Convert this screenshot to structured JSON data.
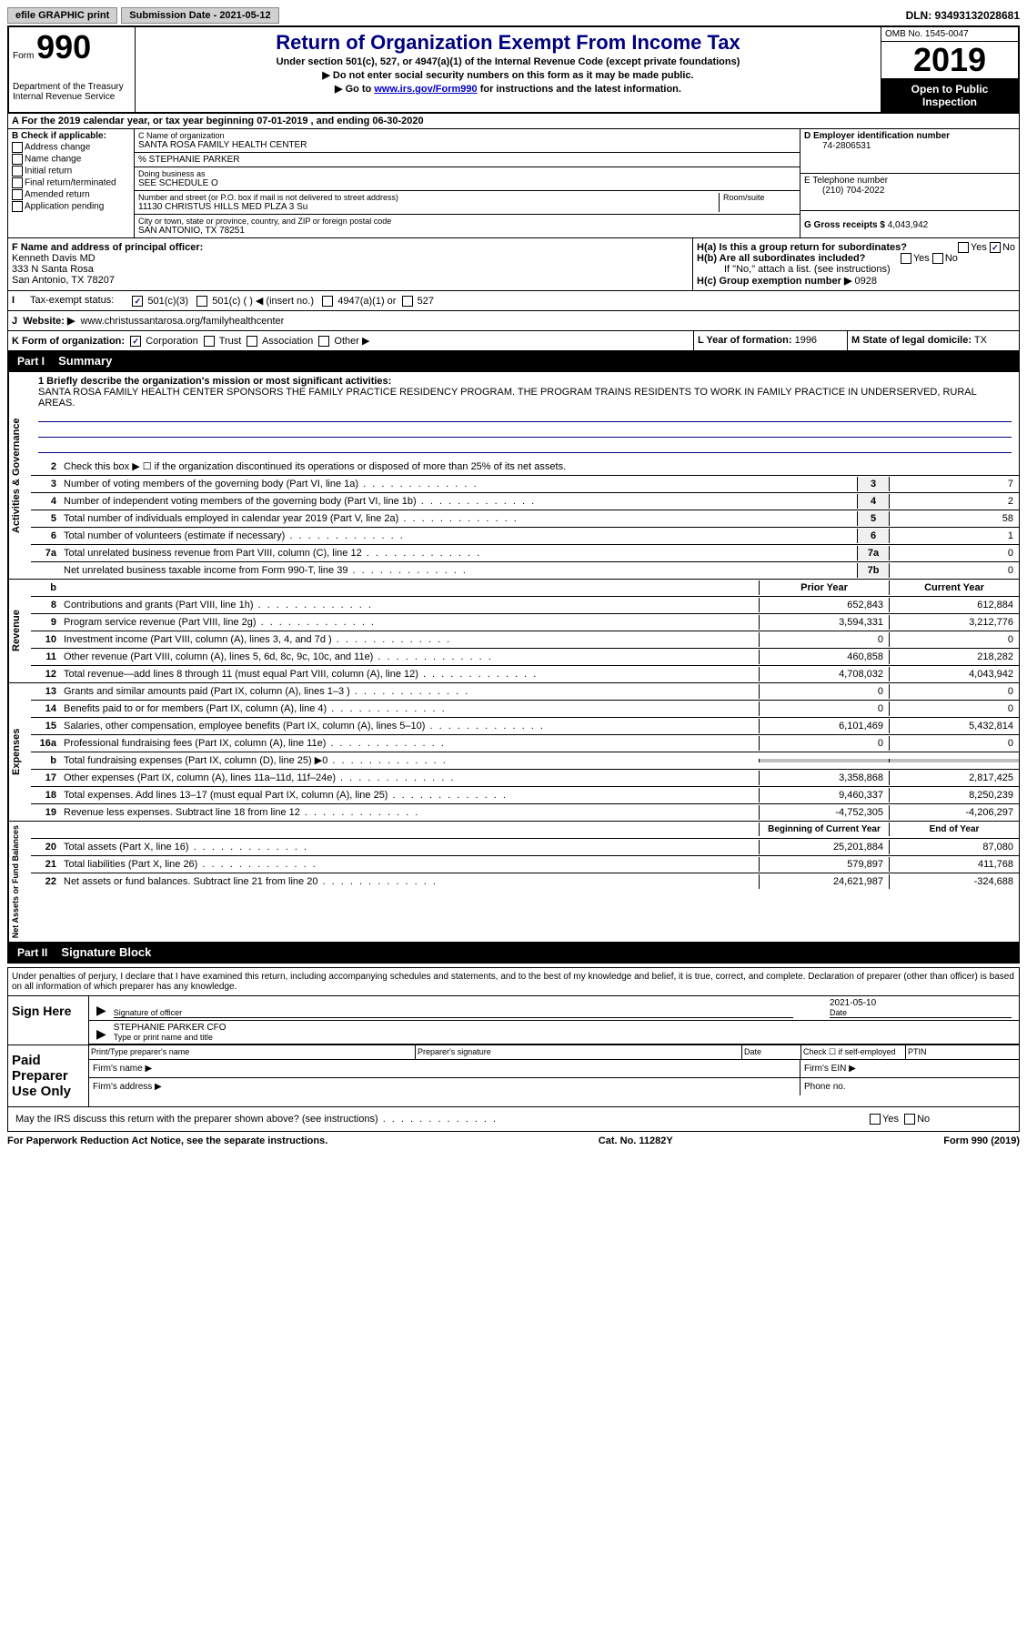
{
  "top_bar": {
    "efile": "efile GRAPHIC print",
    "submission": "Submission Date - 2021-05-12",
    "dln": "DLN: 93493132028681"
  },
  "header": {
    "form_label": "Form",
    "form_number": "990",
    "dept": "Department of the Treasury\nInternal Revenue Service",
    "title": "Return of Organization Exempt From Income Tax",
    "subtitle1": "Under section 501(c), 527, or 4947(a)(1) of the Internal Revenue Code (except private foundations)",
    "subtitle2": "▶ Do not enter social security numbers on this form as it may be made public.",
    "subtitle3_pre": "▶ Go to ",
    "subtitle3_link": "www.irs.gov/Form990",
    "subtitle3_post": " for instructions and the latest information.",
    "omb": "OMB No. 1545-0047",
    "year": "2019",
    "open": "Open to Public Inspection"
  },
  "section_a": {
    "tax_year": "A For the 2019 calendar year, or tax year beginning 07-01-2019    , and ending 06-30-2020",
    "b_label": "B Check if applicable:",
    "b_items": [
      "Address change",
      "Name change",
      "Initial return",
      "Final return/terminated",
      "Amended return",
      "Application pending"
    ],
    "c_name_label": "C Name of organization",
    "c_name": "SANTA ROSA FAMILY HEALTH CENTER",
    "c_care": "% STEPHANIE PARKER",
    "c_dba_label": "Doing business as",
    "c_dba": "SEE SCHEDULE O",
    "c_addr_label": "Number and street (or P.O. box if mail is not delivered to street address)",
    "c_addr": "11130 CHRISTUS HILLS MED PLZA 3 Su",
    "c_room": "Room/suite",
    "c_city_label": "City or town, state or province, country, and ZIP or foreign postal code",
    "c_city": "SAN ANTONIO, TX  78251",
    "d_label": "D Employer identification number",
    "d_val": "74-2806531",
    "e_label": "E Telephone number",
    "e_val": "(210) 704-2022",
    "g_label": "G Gross receipts $",
    "g_val": "4,043,942",
    "f_label": "F  Name and address of principal officer:",
    "f_name": "Kenneth Davis MD",
    "f_addr1": "333 N Santa Rosa",
    "f_addr2": "San Antonio, TX  78207",
    "ha_label": "H(a)  Is this a group return for subordinates?",
    "hb_label": "H(b)  Are all subordinates included?",
    "hb_note": "If \"No,\" attach a list. (see instructions)",
    "hc_label": "H(c)  Group exemption number ▶",
    "hc_val": "0928",
    "i_label": "Tax-exempt status:",
    "i_501c3": "501(c)(3)",
    "i_501c": "501(c) (  ) ◀ (insert no.)",
    "i_4947": "4947(a)(1) or",
    "i_527": "527",
    "j_label": "J",
    "j_website_label": "Website: ▶",
    "j_website": "www.christussantarosa.org/familyhealthcenter",
    "k_label": "K Form of organization:",
    "k_corp": "Corporation",
    "k_trust": "Trust",
    "k_assoc": "Association",
    "k_other": "Other ▶",
    "l_label": "L Year of formation:",
    "l_val": "1996",
    "m_label": "M State of legal domicile:",
    "m_val": "TX"
  },
  "part1": {
    "header": "Part I",
    "title": "Summary",
    "q1_label": "1 Briefly describe the organization's mission or most significant activities:",
    "q1_text": "SANTA ROSA FAMILY HEALTH CENTER SPONSORS THE FAMILY PRACTICE RESIDENCY PROGRAM. THE PROGRAM TRAINS RESIDENTS TO WORK IN FAMILY PRACTICE IN UNDERSERVED, RURAL AREAS.",
    "q2": "Check this box ▶ ☐  if the organization discontinued its operations or disposed of more than 25% of its net assets.",
    "side_gov": "Activities & Governance",
    "side_rev": "Revenue",
    "side_exp": "Expenses",
    "side_net": "Net Assets or Fund Balances",
    "prior_year": "Prior Year",
    "current_year": "Current Year",
    "begin_year": "Beginning of Current Year",
    "end_year": "End of Year",
    "rows_gov": [
      {
        "n": "3",
        "t": "Number of voting members of the governing body (Part VI, line 1a)",
        "box": "3",
        "v": "7"
      },
      {
        "n": "4",
        "t": "Number of independent voting members of the governing body (Part VI, line 1b)",
        "box": "4",
        "v": "2"
      },
      {
        "n": "5",
        "t": "Total number of individuals employed in calendar year 2019 (Part V, line 2a)",
        "box": "5",
        "v": "58"
      },
      {
        "n": "6",
        "t": "Total number of volunteers (estimate if necessary)",
        "box": "6",
        "v": "1"
      },
      {
        "n": "7a",
        "t": "Total unrelated business revenue from Part VIII, column (C), line 12",
        "box": "7a",
        "v": "0"
      },
      {
        "n": "",
        "t": "Net unrelated business taxable income from Form 990-T, line 39",
        "box": "7b",
        "v": "0"
      }
    ],
    "rows_rev": [
      {
        "n": "8",
        "t": "Contributions and grants (Part VIII, line 1h)",
        "py": "652,843",
        "cy": "612,884"
      },
      {
        "n": "9",
        "t": "Program service revenue (Part VIII, line 2g)",
        "py": "3,594,331",
        "cy": "3,212,776"
      },
      {
        "n": "10",
        "t": "Investment income (Part VIII, column (A), lines 3, 4, and 7d )",
        "py": "0",
        "cy": "0"
      },
      {
        "n": "11",
        "t": "Other revenue (Part VIII, column (A), lines 5, 6d, 8c, 9c, 10c, and 11e)",
        "py": "460,858",
        "cy": "218,282"
      },
      {
        "n": "12",
        "t": "Total revenue—add lines 8 through 11 (must equal Part VIII, column (A), line 12)",
        "py": "4,708,032",
        "cy": "4,043,942"
      }
    ],
    "rows_exp": [
      {
        "n": "13",
        "t": "Grants and similar amounts paid (Part IX, column (A), lines 1–3 )",
        "py": "0",
        "cy": "0"
      },
      {
        "n": "14",
        "t": "Benefits paid to or for members (Part IX, column (A), line 4)",
        "py": "0",
        "cy": "0"
      },
      {
        "n": "15",
        "t": "Salaries, other compensation, employee benefits (Part IX, column (A), lines 5–10)",
        "py": "6,101,469",
        "cy": "5,432,814"
      },
      {
        "n": "16a",
        "t": "Professional fundraising fees (Part IX, column (A), line 11e)",
        "py": "0",
        "cy": "0"
      },
      {
        "n": "b",
        "t": "Total fundraising expenses (Part IX, column (D), line 25) ▶0",
        "py": "",
        "cy": "",
        "shaded": true
      },
      {
        "n": "17",
        "t": "Other expenses (Part IX, column (A), lines 11a–11d, 11f–24e)",
        "py": "3,358,868",
        "cy": "2,817,425"
      },
      {
        "n": "18",
        "t": "Total expenses. Add lines 13–17 (must equal Part IX, column (A), line 25)",
        "py": "9,460,337",
        "cy": "8,250,239"
      },
      {
        "n": "19",
        "t": "Revenue less expenses. Subtract line 18 from line 12",
        "py": "-4,752,305",
        "cy": "-4,206,297"
      }
    ],
    "rows_net": [
      {
        "n": "20",
        "t": "Total assets (Part X, line 16)",
        "py": "25,201,884",
        "cy": "87,080"
      },
      {
        "n": "21",
        "t": "Total liabilities (Part X, line 26)",
        "py": "579,897",
        "cy": "411,768"
      },
      {
        "n": "22",
        "t": "Net assets or fund balances. Subtract line 21 from line 20",
        "py": "24,621,987",
        "cy": "-324,688"
      }
    ]
  },
  "part2": {
    "header": "Part II",
    "title": "Signature Block",
    "declaration": "Under penalties of perjury, I declare that I have examined this return, including accompanying schedules and statements, and to the best of my knowledge and belief, it is true, correct, and complete. Declaration of preparer (other than officer) is based on all information of which preparer has any knowledge.",
    "sign_here": "Sign Here",
    "sig_officer": "Signature of officer",
    "sig_date_label": "Date",
    "sig_date": "2021-05-10",
    "sig_name": "STEPHANIE PARKER  CFO",
    "sig_name_label": "Type or print name and title",
    "paid_prep": "Paid Preparer Use Only",
    "prep_name": "Print/Type preparer's name",
    "prep_sig": "Preparer's signature",
    "prep_date": "Date",
    "prep_check": "Check ☐ if self-employed",
    "prep_ptin": "PTIN",
    "firm_name": "Firm's name    ▶",
    "firm_ein": "Firm's EIN ▶",
    "firm_addr": "Firm's address ▶",
    "phone": "Phone no.",
    "discuss": "May the IRS discuss this return with the preparer shown above? (see instructions)",
    "yes": "Yes",
    "no": "No"
  },
  "footer": {
    "paperwork": "For Paperwork Reduction Act Notice, see the separate instructions.",
    "cat": "Cat. No. 11282Y",
    "form": "Form 990 (2019)"
  }
}
